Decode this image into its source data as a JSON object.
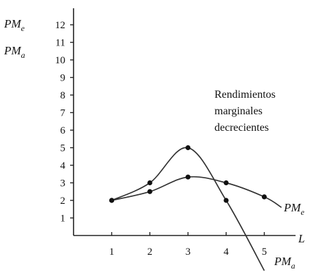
{
  "chart_data": {
    "type": "line",
    "y_axis_labels": [
      {
        "main": "PM",
        "sub": "e"
      },
      {
        "main": "PM",
        "sub": "a"
      }
    ],
    "x_axis_label": "L",
    "annotation": [
      "Rendimientos",
      "marginales",
      "decrecientes"
    ],
    "x_ticks": [
      1,
      2,
      3,
      4,
      5
    ],
    "y_ticks": [
      1,
      2,
      3,
      4,
      5,
      6,
      7,
      8,
      9,
      10,
      11,
      12
    ],
    "xlim": [
      0,
      5.5
    ],
    "ylim": [
      0,
      12.5
    ],
    "series": [
      {
        "name": "PM",
        "name_sub": "e",
        "x": [
          1,
          2,
          3,
          4,
          5
        ],
        "y": [
          2.0,
          2.5,
          3.33,
          3.0,
          2.2
        ],
        "line_end": {
          "x": 5.45,
          "y": 1.6
        }
      },
      {
        "name": "PM",
        "name_sub": "a",
        "x": [
          1,
          2,
          3,
          4
        ],
        "y": [
          2.0,
          3.0,
          5.0,
          2.0
        ],
        "line_end": {
          "x": 5.0,
          "y": -2.0
        }
      }
    ],
    "grid": false,
    "colors": {
      "line": "#333333",
      "text": "#111111"
    }
  }
}
